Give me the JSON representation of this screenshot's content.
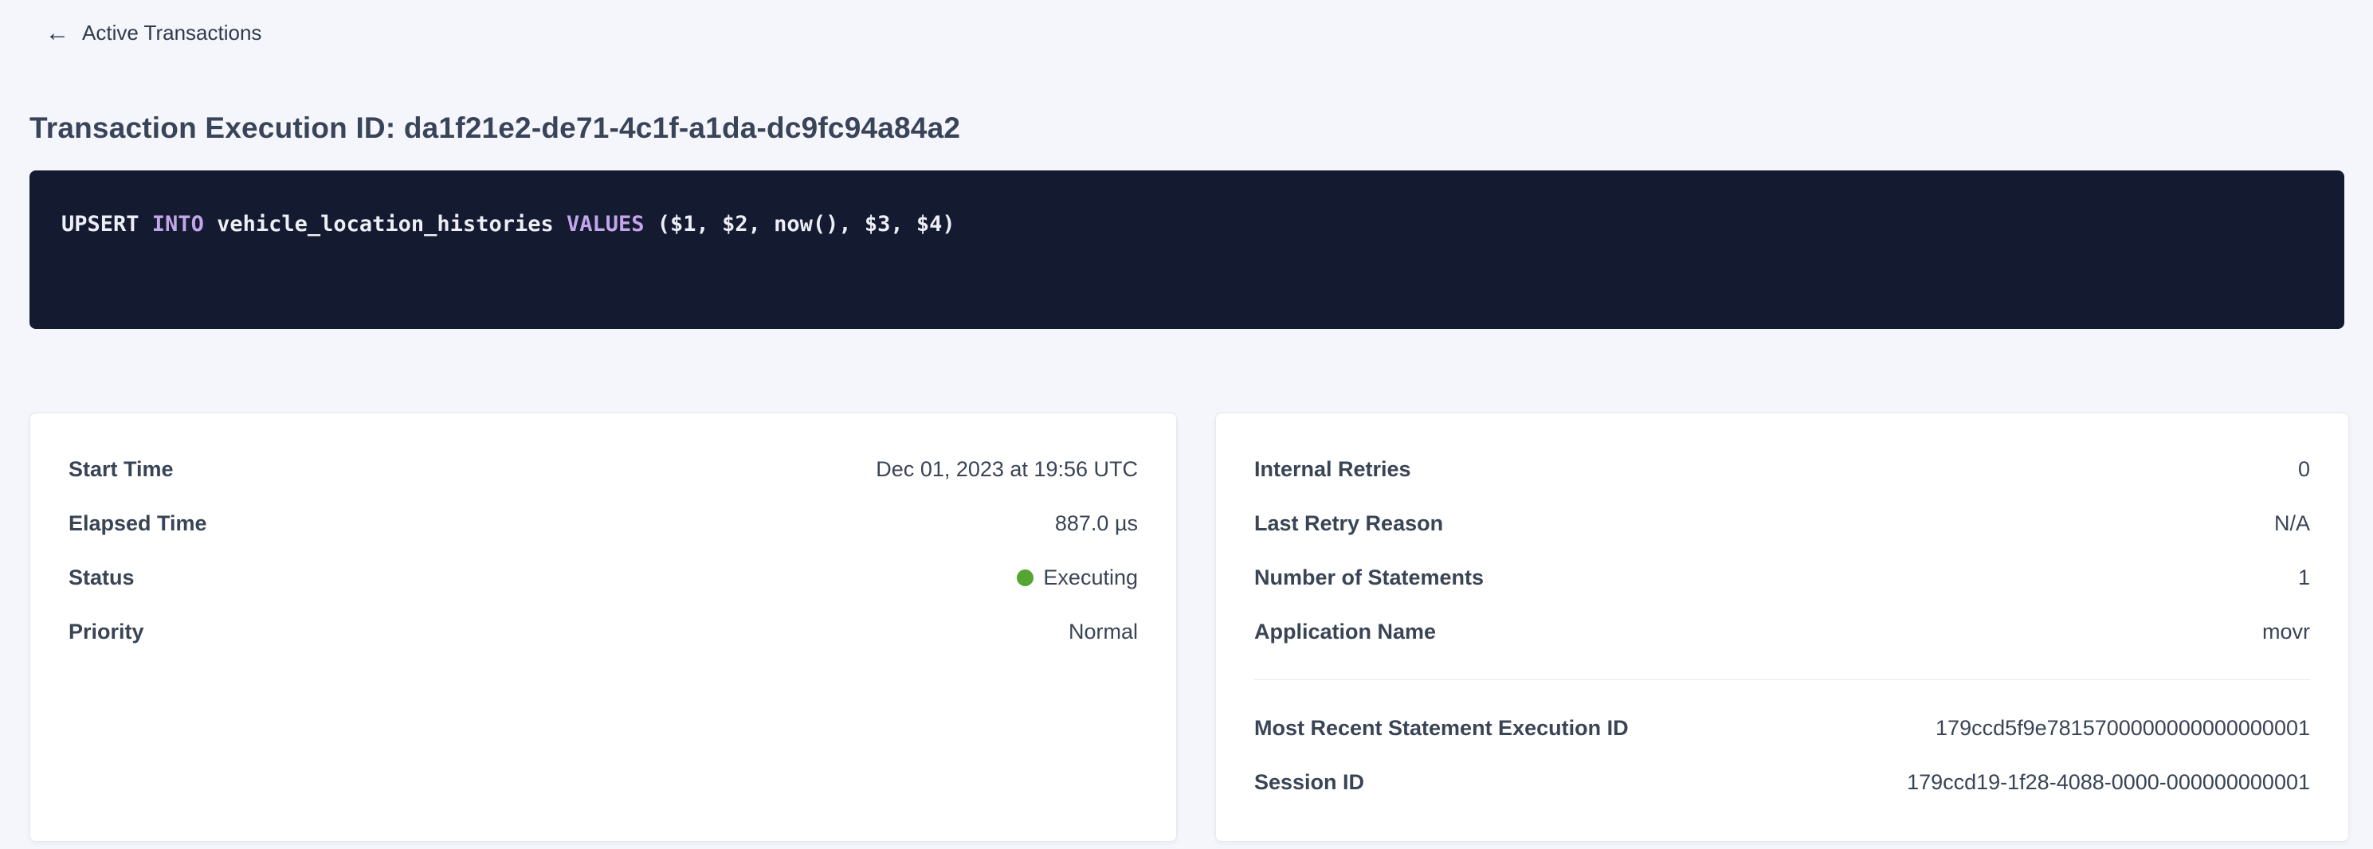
{
  "colors": {
    "page_background": "#f4f6fb",
    "card_background": "#ffffff",
    "text_primary": "#394455",
    "link_blue": "#2b54d6",
    "status_executing_green": "#55a532",
    "sql_box_background": "#141a30",
    "sql_keyword_purple": "#c3a6ea",
    "sql_text_white": "#edeff7"
  },
  "nav": {
    "back_icon": "←",
    "back_label": "Active Transactions"
  },
  "header": {
    "title": "Transaction Execution ID: da1f21e2-de71-4c1f-a1da-dc9fc94a84a2"
  },
  "sql": {
    "statement_full": "UPSERT INTO vehicle_location_histories VALUES ($1, $2, now(), $3, $4)",
    "tokens": {
      "t1": "UPSERT ",
      "t2": "INTO",
      "t3": " vehicle_location_histories ",
      "t4": "VALUES",
      "t5": " ($1, $2, now(), $3, $4)"
    }
  },
  "left_card": {
    "rows": [
      {
        "label": "Start Time",
        "value": "Dec 01, 2023 at 19:56 UTC"
      },
      {
        "label": "Elapsed Time",
        "value": "887.0 µs"
      },
      {
        "label": "Status",
        "value": "Executing"
      },
      {
        "label": "Priority",
        "value": "Normal"
      }
    ]
  },
  "right_card": {
    "rows": [
      {
        "label": "Internal Retries",
        "value": "0"
      },
      {
        "label": "Last Retry Reason",
        "value": "N/A"
      },
      {
        "label": "Number of Statements",
        "value": "1"
      },
      {
        "label": "Application Name",
        "value": "movr"
      }
    ],
    "links": [
      {
        "label": "Most Recent Statement Execution ID",
        "value": "179ccd5f9e7815700000000000000001"
      },
      {
        "label": "Session ID",
        "value": "179ccd19-1f28-4088-0000-000000000001"
      }
    ]
  }
}
